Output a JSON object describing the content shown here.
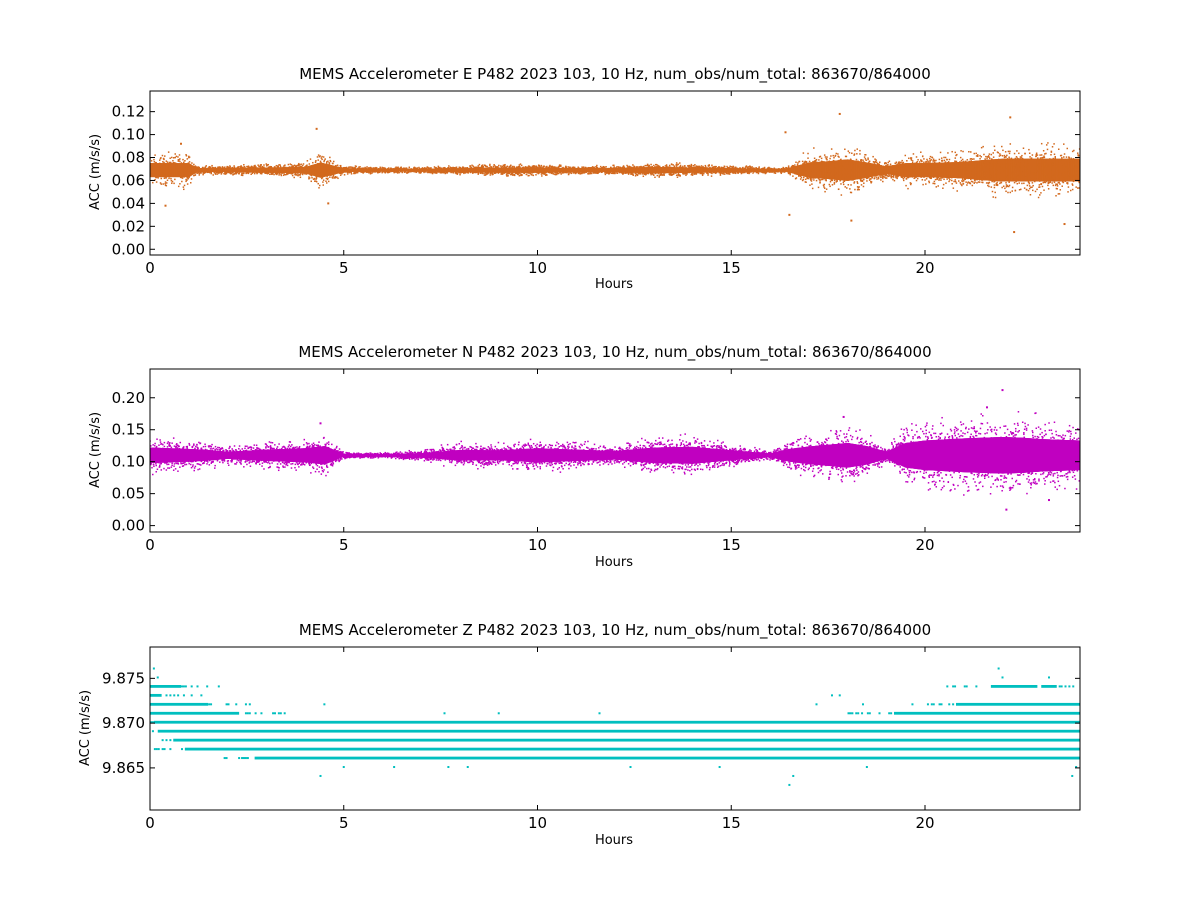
{
  "chart_data": [
    {
      "type": "scatter",
      "title": "MEMS Accelerometer E P482 2023 103, 10 Hz, num_obs/num_total: 863670/864000",
      "xlabel": "Hours",
      "ylabel": "ACC (m/s/s)",
      "xlim": [
        0,
        24
      ],
      "ylim": [
        -0.005,
        0.138
      ],
      "xticks": [
        0,
        5,
        10,
        15,
        20
      ],
      "yticks": [
        0.0,
        0.02,
        0.04,
        0.06,
        0.08,
        0.1,
        0.12
      ],
      "ytick_labels": [
        "0.00",
        "0.02",
        "0.04",
        "0.06",
        "0.08",
        "0.10",
        "0.12"
      ],
      "color": "#d2691e",
      "grid": false,
      "series": [
        {
          "center": 0.069,
          "envelope_hours": [
            0,
            1,
            1.2,
            2,
            3,
            4,
            4.4,
            5,
            6,
            7,
            8,
            9,
            10,
            11,
            12,
            13,
            14,
            15,
            16,
            16.4,
            17,
            17.5,
            18,
            18.5,
            19,
            19.5,
            20,
            21,
            21.5,
            22,
            23,
            24
          ],
          "envelope_halfwidth": [
            0.011,
            0.011,
            0.003,
            0.003,
            0.004,
            0.005,
            0.012,
            0.003,
            0.002,
            0.002,
            0.003,
            0.004,
            0.004,
            0.003,
            0.003,
            0.005,
            0.004,
            0.003,
            0.002,
            0.002,
            0.012,
            0.014,
            0.017,
            0.012,
            0.006,
            0.011,
            0.011,
            0.013,
            0.016,
            0.018,
            0.018,
            0.018
          ],
          "extremes": [
            [
              0.8,
              0.092
            ],
            [
              0.4,
              0.038
            ],
            [
              4.3,
              0.105
            ],
            [
              4.6,
              0.04
            ],
            [
              16.4,
              0.102
            ],
            [
              16.5,
              0.03
            ],
            [
              17.8,
              0.118
            ],
            [
              18.1,
              0.025
            ],
            [
              22.2,
              0.115
            ],
            [
              22.3,
              0.015
            ],
            [
              23.6,
              0.022
            ]
          ]
        }
      ]
    },
    {
      "type": "scatter",
      "title": "MEMS Accelerometer N P482 2023 103, 10 Hz, num_obs/num_total: 863670/864000",
      "xlabel": "Hours",
      "ylabel": "ACC (m/s/s)",
      "xlim": [
        0,
        24
      ],
      "ylim": [
        -0.01,
        0.245
      ],
      "xticks": [
        0,
        5,
        10,
        15,
        20
      ],
      "yticks": [
        0.0,
        0.05,
        0.1,
        0.15,
        0.2
      ],
      "ytick_labels": [
        "0.00",
        "0.05",
        "0.10",
        "0.15",
        "0.20"
      ],
      "color": "#c000c0",
      "grid": false,
      "series": [
        {
          "center": 0.11,
          "envelope_hours": [
            0,
            1,
            1.5,
            2,
            3,
            4,
            4.5,
            5,
            6,
            7,
            8,
            9,
            10,
            11,
            12,
            13,
            14,
            15,
            16,
            16.5,
            17,
            17.5,
            18,
            18.5,
            19,
            19.5,
            20,
            21,
            22,
            22.5,
            23,
            24
          ],
          "envelope_halfwidth": [
            0.022,
            0.018,
            0.015,
            0.01,
            0.016,
            0.02,
            0.026,
            0.004,
            0.003,
            0.006,
            0.015,
            0.014,
            0.02,
            0.016,
            0.012,
            0.022,
            0.024,
            0.014,
            0.005,
            0.018,
            0.025,
            0.03,
            0.035,
            0.026,
            0.01,
            0.035,
            0.042,
            0.048,
            0.052,
            0.05,
            0.046,
            0.042
          ],
          "extremes": [
            [
              4.4,
              0.16
            ],
            [
              17.9,
              0.17
            ],
            [
              22.0,
              0.212
            ],
            [
              22.1,
              0.025
            ],
            [
              21.6,
              0.185
            ],
            [
              23.2,
              0.04
            ]
          ]
        }
      ]
    },
    {
      "type": "scatter",
      "title": "MEMS Accelerometer Z P482 2023 103, 10 Hz, num_obs/num_total: 863670/864000",
      "xlabel": "Hours",
      "ylabel": "ACC (m/s/s)",
      "xlim": [
        0,
        24
      ],
      "ylim": [
        9.8603,
        9.8785
      ],
      "xticks": [
        0,
        5,
        10,
        15,
        20
      ],
      "yticks": [
        9.865,
        9.87,
        9.875
      ],
      "ytick_labels": [
        "9.865",
        "9.870",
        "9.875"
      ],
      "color": "#00bfbf",
      "grid": false,
      "series": [
        {
          "levels": [
            {
              "y": 9.8661,
              "dense": [
                [
                  2.7,
                  24
                ]
              ]
            },
            {
              "y": 9.8671,
              "dense": [
                [
                  0.9,
                  24
                ]
              ]
            },
            {
              "y": 9.8681,
              "dense": [
                [
                  0.6,
                  24
                ]
              ]
            },
            {
              "y": 9.8691,
              "dense": [
                [
                  0.2,
                  24
                ]
              ]
            },
            {
              "y": 9.8701,
              "dense": [
                [
                  0.1,
                  24
                ]
              ]
            },
            {
              "y": 9.8711,
              "dense": [
                [
                  0,
                  2.3
                ],
                [
                  19.2,
                  24
                ]
              ]
            },
            {
              "y": 9.8721,
              "dense": [
                [
                  0,
                  1.5
                ],
                [
                  20.8,
                  24
                ]
              ]
            },
            {
              "y": 9.8731,
              "dense": [
                [
                  0,
                  0.3
                ]
              ]
            },
            {
              "y": 9.8741,
              "dense": [
                [
                  0,
                  0.8
                ],
                [
                  21.7,
                  22.9
                ],
                [
                  23,
                  23.4
                ]
              ]
            }
          ],
          "sparse": [
            [
              2.3,
              9.8661
            ],
            [
              4.4,
              9.8641
            ],
            [
              5.0,
              9.8651
            ],
            [
              6.3,
              9.8651
            ],
            [
              7.7,
              9.8651
            ],
            [
              8.2,
              9.8651
            ],
            [
              12.4,
              9.8651
            ],
            [
              14.7,
              9.8651
            ],
            [
              16.5,
              9.8631
            ],
            [
              16.6,
              9.8641
            ],
            [
              18.5,
              9.8651
            ],
            [
              4.5,
              9.8721
            ],
            [
              7.6,
              9.8711
            ],
            [
              9.0,
              9.8711
            ],
            [
              11.6,
              9.8711
            ],
            [
              17.2,
              9.8721
            ],
            [
              17.6,
              9.8731
            ],
            [
              17.8,
              9.8731
            ],
            [
              18.4,
              9.8721
            ],
            [
              0.1,
              9.8761
            ],
            [
              0.2,
              9.8751
            ],
            [
              21.9,
              9.8761
            ],
            [
              23.8,
              9.8641
            ],
            [
              23.9,
              9.8651
            ],
            [
              22.0,
              9.8751
            ],
            [
              23.2,
              9.8751
            ]
          ]
        }
      ]
    }
  ]
}
